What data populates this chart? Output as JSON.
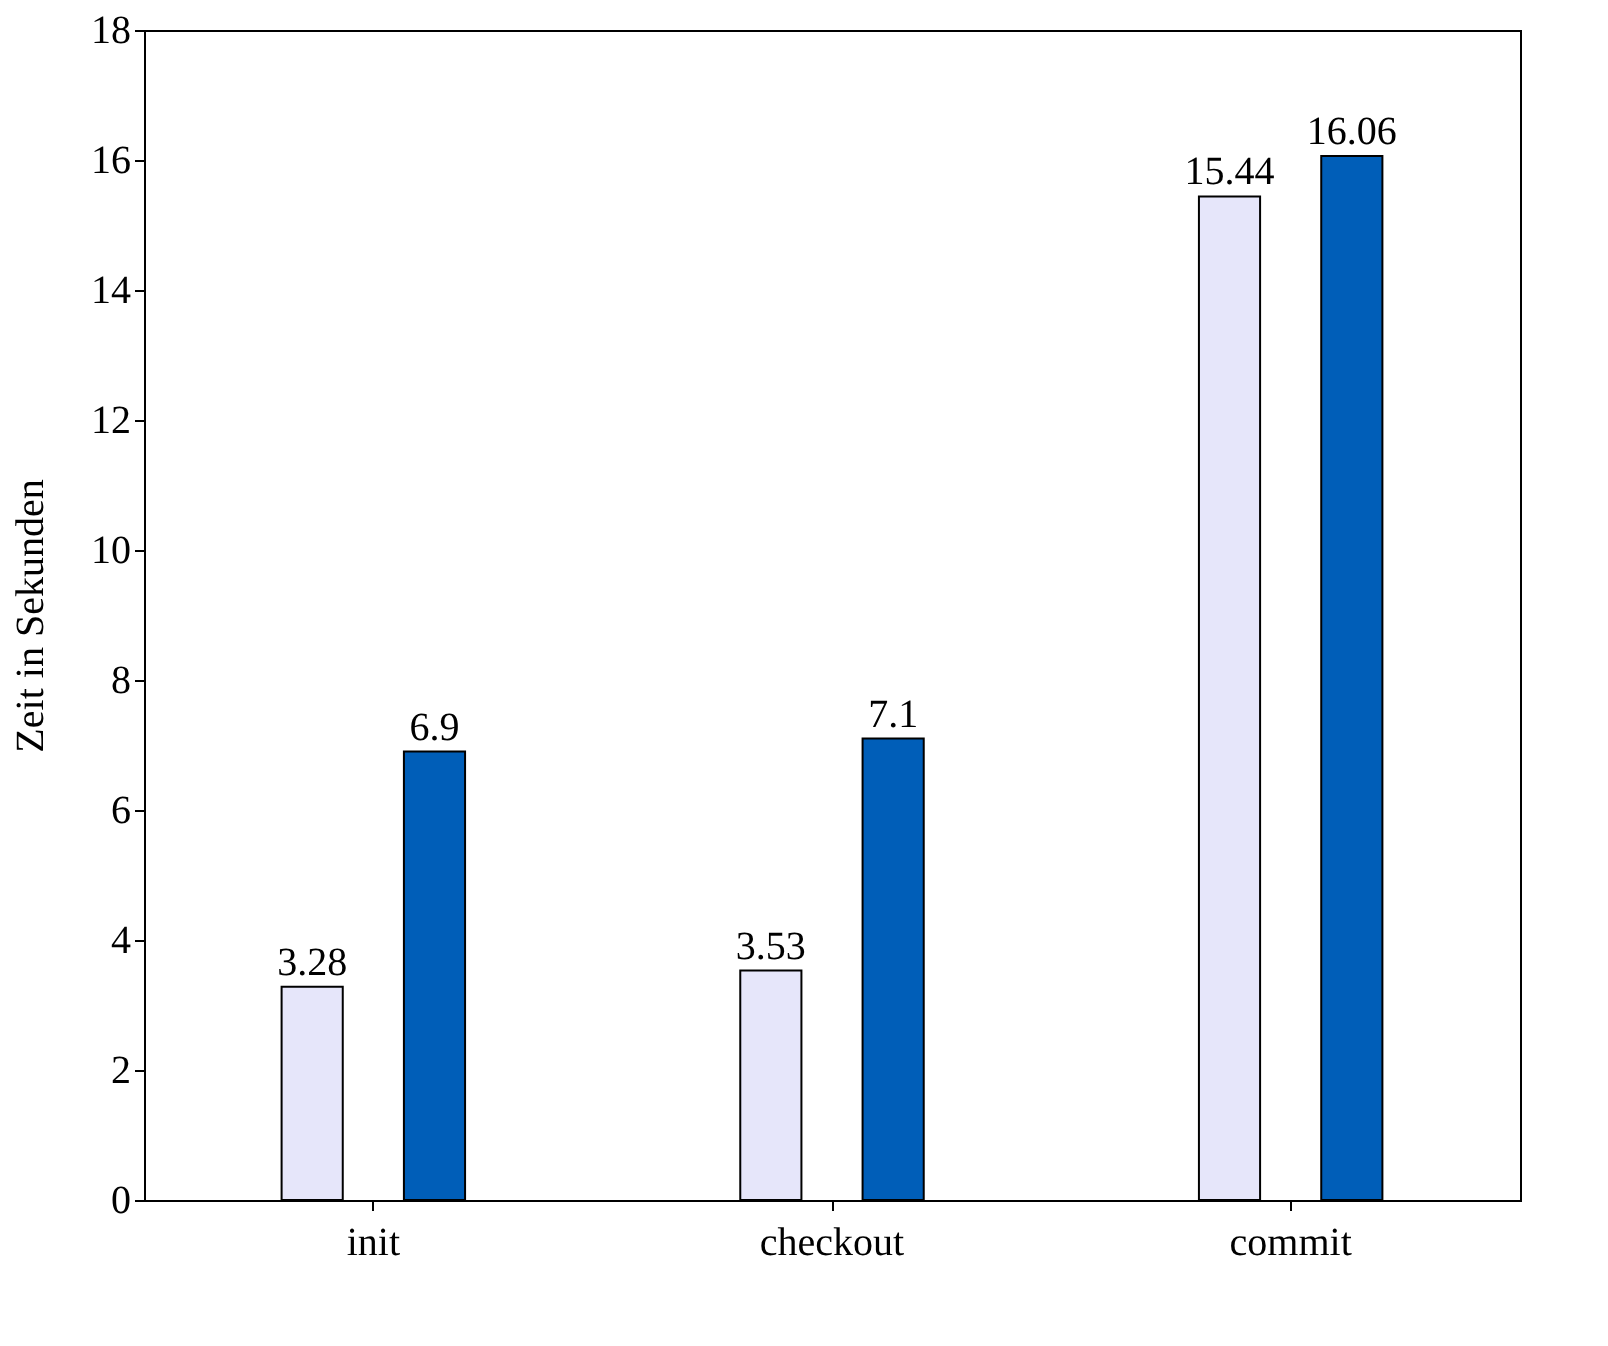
{
  "chart_data": {
    "type": "bar",
    "ylabel": "Zeit in Sekunden",
    "categories": [
      "init",
      "checkout",
      "commit"
    ],
    "series": [
      {
        "color": "#e6e6fa",
        "values": [
          3.28,
          3.53,
          15.44
        ]
      },
      {
        "color": "#005eb8",
        "values": [
          6.9,
          7.1,
          16.06
        ]
      }
    ],
    "ylim": [
      0,
      18
    ],
    "yticks": [
      0,
      2,
      4,
      6,
      8,
      10,
      12,
      14,
      16,
      18
    ],
    "data_labels": true,
    "grid": false,
    "legend": false
  }
}
